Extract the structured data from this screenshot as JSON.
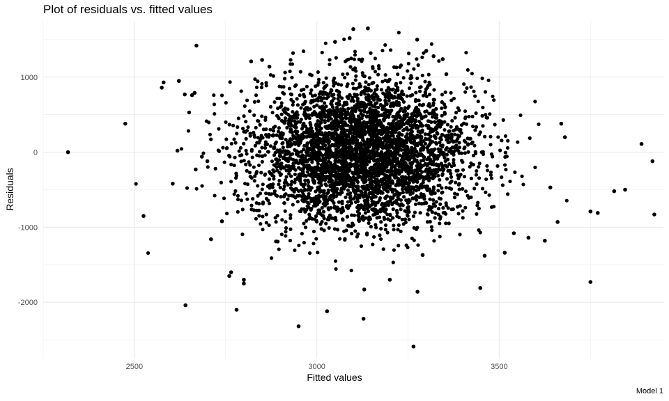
{
  "chart_data": {
    "type": "scatter",
    "title": "Plot of residuals vs. fitted values",
    "xlabel": "Fitted values",
    "ylabel": "Residuals",
    "caption": "Model 1",
    "xlim": [
      2250,
      3950
    ],
    "ylim": [
      -2750,
      1750
    ],
    "x_ticks": [
      2500,
      3000,
      3500
    ],
    "y_ticks": [
      -2000,
      -1000,
      0,
      1000
    ],
    "grid": true,
    "legend": "none",
    "point_color": "#000000",
    "grid_color": "#ebebeb",
    "outliers": [
      [
        2318,
        0
      ],
      [
        2475,
        380
      ],
      [
        2525,
        -850
      ],
      [
        2575,
        860
      ],
      [
        2580,
        930
      ],
      [
        2605,
        -420
      ],
      [
        2618,
        20
      ],
      [
        2622,
        950
      ],
      [
        2638,
        770
      ],
      [
        2640,
        -2040
      ],
      [
        2650,
        530
      ],
      [
        2658,
        760
      ],
      [
        2665,
        790
      ],
      [
        2668,
        -230
      ],
      [
        2670,
        1420
      ],
      [
        2685,
        -60
      ],
      [
        2700,
        -120
      ],
      [
        2710,
        -1160
      ],
      [
        2740,
        -920
      ],
      [
        2760,
        -1650
      ],
      [
        2765,
        -1600
      ],
      [
        2780,
        -2100
      ],
      [
        2800,
        -1700
      ],
      [
        2800,
        -1750
      ],
      [
        2820,
        1210
      ],
      [
        2850,
        1230
      ],
      [
        2870,
        1140
      ],
      [
        2950,
        -2320
      ],
      [
        3028,
        -2120
      ],
      [
        3050,
        1470
      ],
      [
        3090,
        1520
      ],
      [
        3100,
        1640
      ],
      [
        3128,
        -2220
      ],
      [
        3140,
        1650
      ],
      [
        3130,
        -1830
      ],
      [
        3200,
        -1700
      ],
      [
        3265,
        -2590
      ],
      [
        3275,
        1500
      ],
      [
        3276,
        -1860
      ],
      [
        3290,
        -1370
      ],
      [
        3300,
        1350
      ],
      [
        3320,
        1280
      ],
      [
        3345,
        1240
      ],
      [
        3355,
        1040
      ],
      [
        3448,
        -1810
      ],
      [
        3460,
        -1380
      ],
      [
        3515,
        -1340
      ],
      [
        3540,
        -1080
      ],
      [
        3580,
        -1140
      ],
      [
        3625,
        -1180
      ],
      [
        3640,
        -470
      ],
      [
        3660,
        -930
      ],
      [
        3670,
        380
      ],
      [
        3680,
        200
      ],
      [
        3750,
        -790
      ],
      [
        3750,
        -1730
      ],
      [
        3770,
        -810
      ],
      [
        3815,
        -520
      ],
      [
        3845,
        -500
      ],
      [
        3890,
        110
      ],
      [
        3920,
        -120
      ],
      [
        3925,
        -830
      ]
    ],
    "cloud": {
      "x_mean": 3125,
      "x_sd": 150,
      "y_mean": 0,
      "y_sd": 480,
      "n": 4000
    }
  }
}
